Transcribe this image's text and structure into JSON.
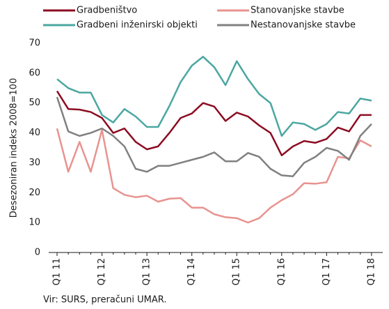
{
  "chart_data": {
    "type": "line",
    "ylabel": "Desezoniran indeks 2008=100",
    "source": "Vir: SURS, preračuni UMAR.",
    "categories": [
      "Q1 11",
      null,
      null,
      null,
      "Q1 12",
      null,
      null,
      null,
      "Q1 13",
      null,
      null,
      null,
      "Q1 14",
      null,
      null,
      null,
      "Q1 15",
      null,
      null,
      null,
      "Q1 16",
      null,
      null,
      null,
      "Q1 17",
      null,
      null,
      null,
      "Q1 18"
    ],
    "series": [
      {
        "name": "Gradbeništvo",
        "color": "#8c0d22",
        "values": [
          54,
          48,
          47.8,
          47,
          45,
          40,
          41.5,
          37,
          34.5,
          35.5,
          40,
          45,
          46.5,
          50,
          48.8,
          44,
          46.8,
          45.5,
          42.5,
          40,
          32.5,
          35.5,
          37.3,
          36.7,
          38,
          41.8,
          40.5,
          46,
          46
        ]
      },
      {
        "name": "Stanovanjske stavbe",
        "color": "#e8938f",
        "values": [
          41.5,
          27,
          37,
          27,
          41,
          21.5,
          19.3,
          18.5,
          19,
          17,
          18,
          18.2,
          15,
          15,
          12.8,
          11.8,
          11.5,
          10,
          11.5,
          15,
          17.5,
          19.5,
          23.2,
          23,
          23.5,
          32,
          31.5,
          37.5,
          35.5
        ]
      },
      {
        "name": "Gradbeni inženirski objekti",
        "color": "#4ba7a1",
        "values": [
          58,
          55,
          53.5,
          53.5,
          46,
          43.5,
          48,
          45.5,
          42,
          42,
          49,
          57,
          62.5,
          65.5,
          62,
          56,
          64,
          58,
          53,
          50,
          39,
          43.5,
          43,
          41,
          43,
          47,
          46.5,
          51.5,
          50.8
        ]
      },
      {
        "name": "Nestanovanjske stavbe",
        "color": "#808080",
        "values": [
          52,
          40.5,
          39,
          40,
          41.5,
          39,
          35.5,
          28,
          27,
          29,
          29,
          30,
          31,
          32,
          33.5,
          30.5,
          30.5,
          33.3,
          32,
          28,
          25.8,
          25.5,
          30,
          32,
          35,
          34,
          31,
          39,
          43
        ]
      }
    ],
    "ylim": [
      0,
      70
    ],
    "yticks": [
      0,
      10,
      20,
      30,
      40,
      50,
      60,
      70
    ]
  }
}
